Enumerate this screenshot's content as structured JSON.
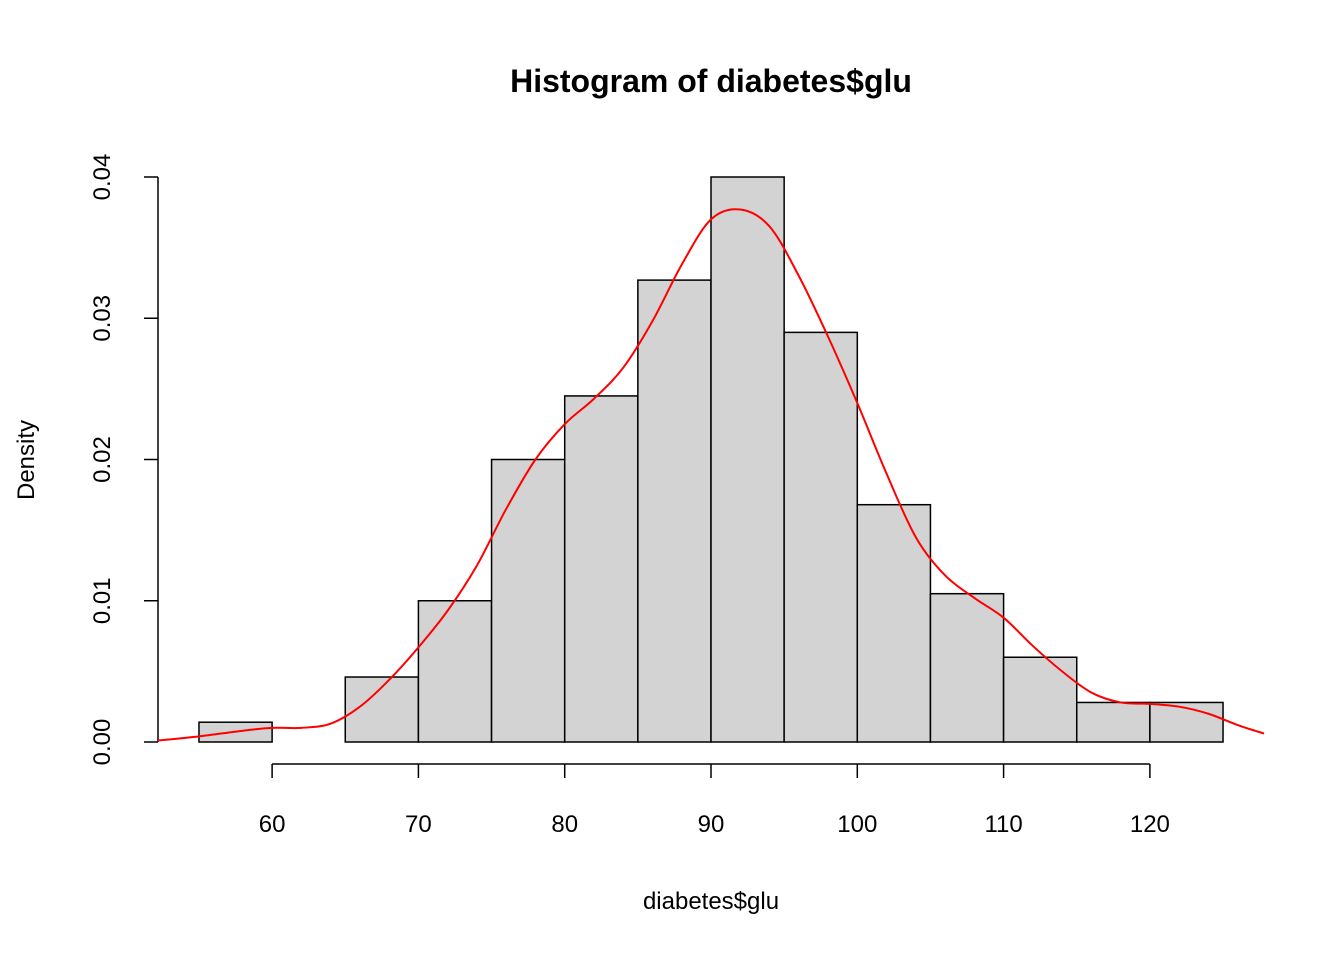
{
  "chart_data": {
    "type": "bar",
    "title": "Histogram of diabetes$glu",
    "xlabel": "diabetes$glu",
    "ylabel": "Density",
    "bin_edges": [
      55,
      60,
      65,
      70,
      75,
      80,
      85,
      90,
      95,
      100,
      105,
      110,
      115,
      120,
      125
    ],
    "values": [
      0.0014,
      0.0,
      0.0046,
      0.01,
      0.02,
      0.0245,
      0.0327,
      0.04,
      0.029,
      0.0168,
      0.0105,
      0.006,
      0.0028,
      0.0028
    ],
    "x_ticks": [
      60,
      70,
      80,
      90,
      100,
      110,
      120
    ],
    "x_tick_labels": [
      "60",
      "70",
      "80",
      "90",
      "100",
      "110",
      "120"
    ],
    "y_ticks": [
      0,
      0.01,
      0.02,
      0.03,
      0.04
    ],
    "y_tick_labels": [
      "0.00",
      "0.01",
      "0.02",
      "0.03",
      "0.04"
    ],
    "xlim": [
      52.2,
      127.8
    ],
    "ylim": [
      0,
      0.04
    ],
    "grid": false,
    "bar_color": "#d3d3d3",
    "bar_border_color": "#000000",
    "density": {
      "color": "#ff0000",
      "x": [
        52.2,
        55,
        58,
        60,
        62,
        64,
        66,
        68,
        70,
        72,
        74,
        76,
        78,
        80,
        82,
        84,
        86,
        88,
        90,
        92,
        94,
        96,
        98,
        100,
        102,
        104,
        106,
        108,
        110,
        112,
        114,
        116,
        118,
        120,
        122,
        124,
        126,
        127.8
      ],
      "y": [
        0.0001,
        0.0004,
        0.0008,
        0.001,
        0.001,
        0.0013,
        0.0025,
        0.0044,
        0.0067,
        0.0093,
        0.0125,
        0.0165,
        0.02,
        0.0225,
        0.0243,
        0.0265,
        0.0298,
        0.0338,
        0.037,
        0.0377,
        0.0365,
        0.033,
        0.0287,
        0.024,
        0.019,
        0.0145,
        0.0118,
        0.0102,
        0.0088,
        0.0068,
        0.005,
        0.0035,
        0.0028,
        0.0027,
        0.0025,
        0.002,
        0.0012,
        0.0006
      ]
    }
  }
}
